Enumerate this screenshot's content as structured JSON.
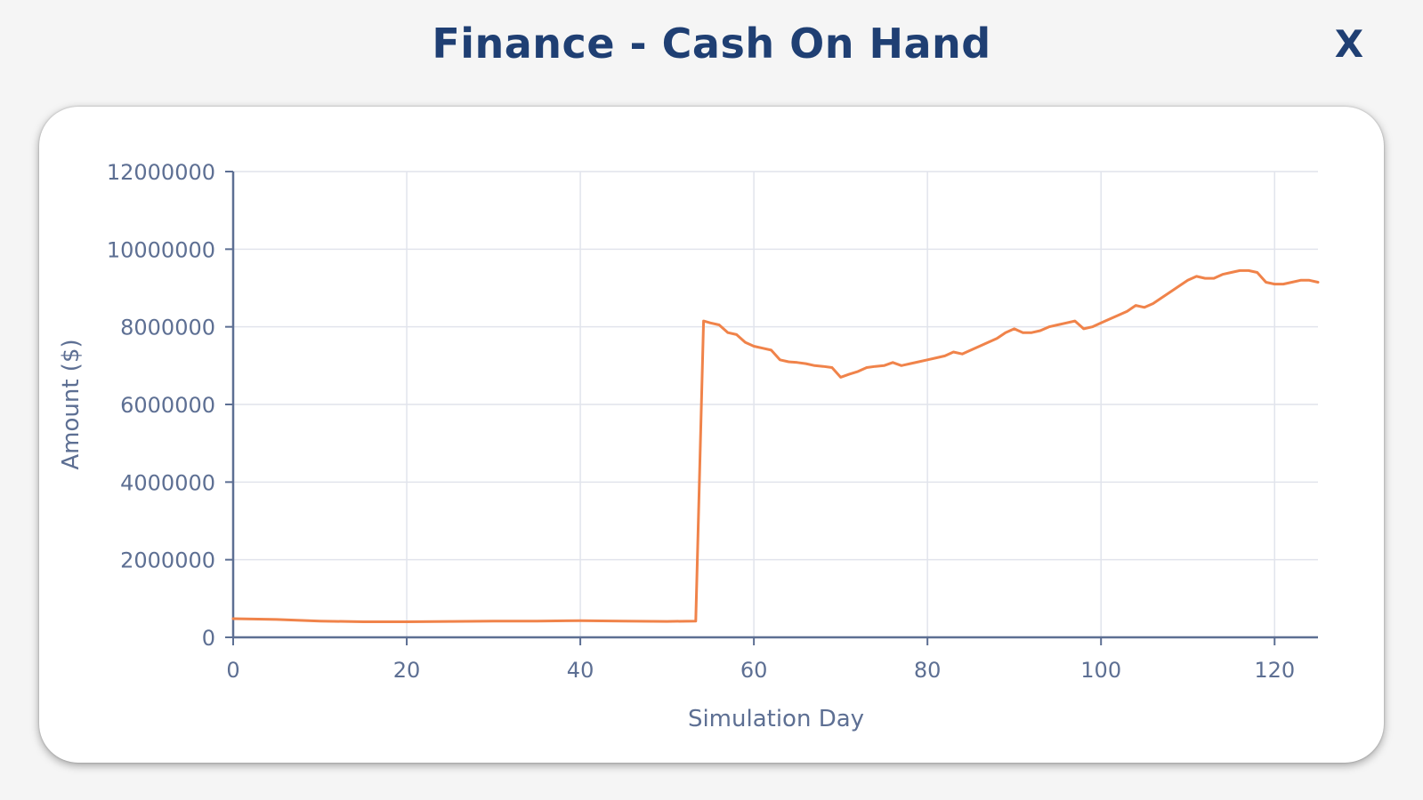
{
  "window": {
    "title": "Finance - Cash On Hand",
    "close_label": "X"
  },
  "chart_data": {
    "type": "line",
    "title": "",
    "xlabel": "Simulation Day",
    "ylabel": "Amount ($)",
    "xlim": [
      0,
      125
    ],
    "ylim": [
      0,
      12000000
    ],
    "x_ticks": [
      0,
      20,
      40,
      60,
      80,
      100,
      120
    ],
    "y_ticks": [
      0,
      2000000,
      4000000,
      6000000,
      8000000,
      10000000,
      12000000
    ],
    "grid": true,
    "legend": "none",
    "line_color": "#f0834a",
    "axis_color": "#5d6f93",
    "series": [
      {
        "x": [
          0,
          5,
          10,
          15,
          20,
          25,
          30,
          35,
          40,
          45,
          50,
          53.3,
          54.2,
          55,
          56,
          57,
          58,
          59,
          60,
          61,
          62,
          63,
          64,
          65,
          66,
          67,
          68,
          69,
          70,
          71,
          72,
          73,
          74,
          75,
          76,
          77,
          78,
          79,
          80,
          81,
          82,
          83,
          84,
          85,
          86,
          87,
          88,
          89,
          90,
          91,
          92,
          93,
          94,
          95,
          96,
          97,
          98,
          99,
          100,
          101,
          102,
          103,
          104,
          105,
          106,
          107,
          108,
          109,
          110,
          111,
          112,
          113,
          114,
          115,
          116,
          117,
          118,
          119,
          120,
          121,
          122,
          123,
          124,
          125
        ],
        "y": [
          480000,
          460000,
          420000,
          400000,
          400000,
          410000,
          420000,
          420000,
          430000,
          420000,
          410000,
          420000,
          8150000,
          8100000,
          8050000,
          7850000,
          7800000,
          7600000,
          7500000,
          7450000,
          7400000,
          7150000,
          7100000,
          7080000,
          7050000,
          7000000,
          6980000,
          6950000,
          6700000,
          6780000,
          6850000,
          6950000,
          6980000,
          7000000,
          7080000,
          7000000,
          7050000,
          7100000,
          7150000,
          7200000,
          7250000,
          7350000,
          7300000,
          7400000,
          7500000,
          7600000,
          7700000,
          7850000,
          7950000,
          7850000,
          7850000,
          7900000,
          8000000,
          8050000,
          8100000,
          8150000,
          7950000,
          8000000,
          8100000,
          8200000,
          8300000,
          8400000,
          8550000,
          8500000,
          8600000,
          8750000,
          8900000,
          9050000,
          9200000,
          9300000,
          9250000,
          9250000,
          9350000,
          9400000,
          9450000,
          9450000,
          9400000,
          9150000,
          9100000,
          9100000,
          9150000,
          9200000,
          9200000,
          9150000
        ]
      }
    ]
  }
}
